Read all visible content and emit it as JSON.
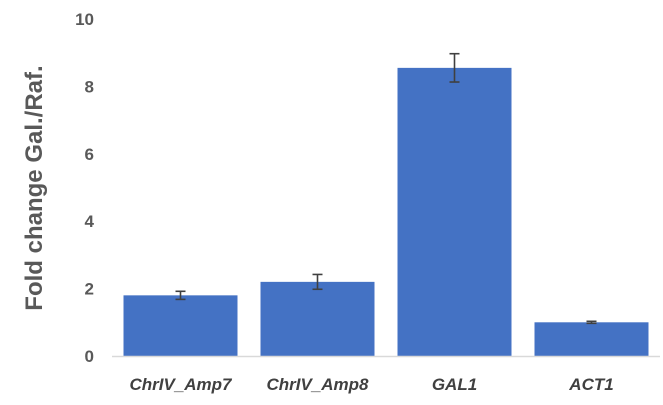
{
  "chart_data": {
    "type": "bar",
    "title": "",
    "xlabel": "",
    "ylabel": "Fold change Gal./Raf.",
    "ylim": [
      0,
      10
    ],
    "yticks": [
      0,
      2,
      4,
      6,
      8,
      10
    ],
    "yticks_labels": [
      "0",
      "2",
      "4",
      "6",
      "8",
      "10"
    ],
    "grid": false,
    "legend": "none",
    "categories": [
      "ChrIV_Amp7",
      "ChrIV_Amp8",
      "GAL1",
      "ACT1"
    ],
    "values": [
      1.8,
      2.2,
      8.55,
      1.0
    ],
    "errors": [
      0.12,
      0.22,
      0.42,
      0.03
    ],
    "colors": {
      "bar": "#4472C4",
      "error_bar": "#404040",
      "axis": "#D9D9D9"
    }
  }
}
